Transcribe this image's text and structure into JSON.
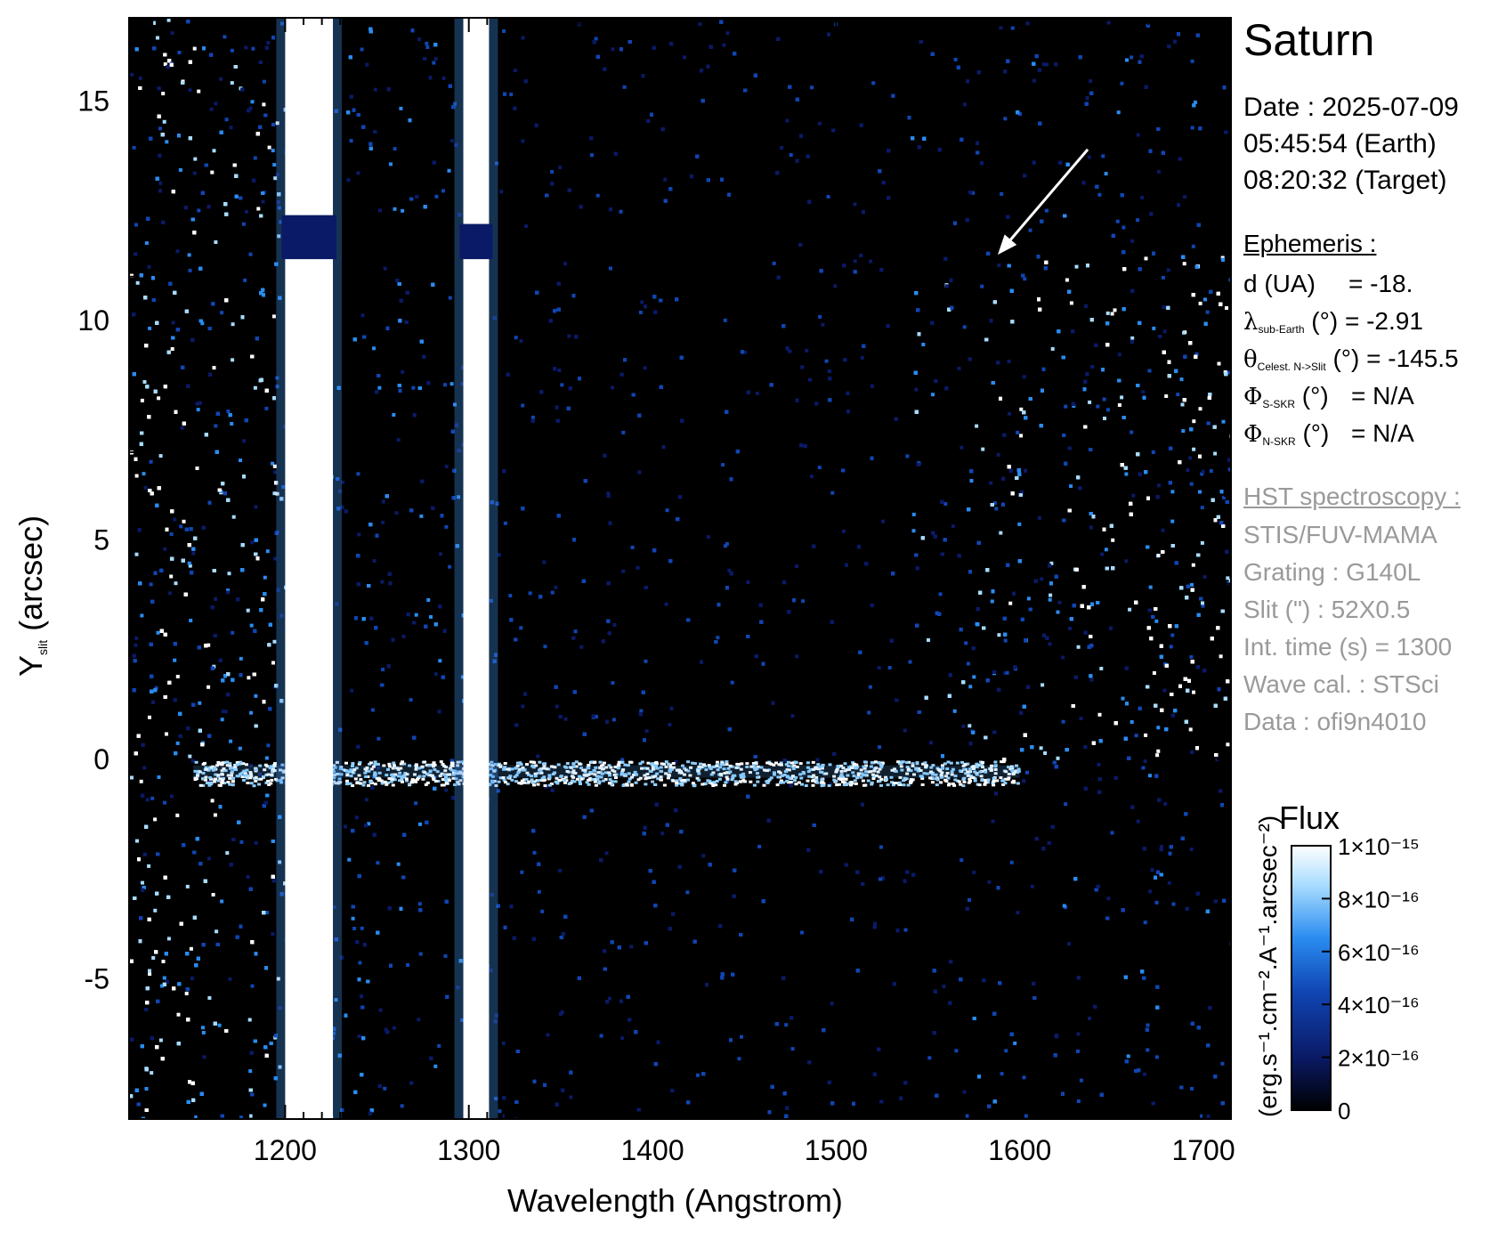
{
  "chart_data": {
    "type": "heatmap",
    "title": "Saturn",
    "xlabel": "Wavelength (Angstrom)",
    "ylabel_main": "Y",
    "ylabel_sub": "slit",
    "ylabel_units": "(arcsec)",
    "xlim": [
      1115,
      1715
    ],
    "ylim": [
      -8.2,
      16.9
    ],
    "x_ticks": [
      1200,
      1300,
      1400,
      1500,
      1600,
      1700
    ],
    "x_tick_labels": [
      "1200",
      "1300",
      "1400",
      "1500",
      "1600",
      "1700"
    ],
    "y_ticks": [
      -5,
      0,
      5,
      10,
      15
    ],
    "y_tick_labels": [
      "-5",
      "0",
      "5",
      "10",
      "15"
    ],
    "bright_columns": [
      {
        "x_min": 1200,
        "x_max": 1226,
        "gap_y": [
          11.4,
          12.4
        ]
      },
      {
        "x_min": 1297,
        "x_max": 1311,
        "gap_y": [
          11.4,
          12.2
        ]
      }
    ],
    "horizontal_feature_y": -0.3,
    "arrow": {
      "from": [
        1637,
        13.9
      ],
      "to": [
        1588,
        11.5
      ]
    },
    "colorbar": {
      "title": "Flux",
      "units": "(erg.s⁻¹.cm⁻².A⁻¹.arcsec⁻²)",
      "range": [
        0,
        1e-15
      ],
      "ticks": [
        0,
        2e-16,
        4e-16,
        6e-16,
        8e-16,
        1e-15
      ],
      "tick_labels": [
        "0",
        "2×10⁻¹⁶",
        "4×10⁻¹⁶",
        "6×10⁻¹⁶",
        "8×10⁻¹⁶",
        "1×10⁻¹⁵"
      ],
      "colors": [
        "#000000",
        "#0a1a66",
        "#1046b4",
        "#2a8cf0",
        "#a8dcff",
        "#ffffff"
      ]
    }
  },
  "info": {
    "date_line": "Date : 2025-07-09",
    "earth_time": "05:45:54 (Earth)",
    "target_time": "08:20:32 (Target)",
    "ephemeris_header": "Ephemeris :",
    "d_label": "d (UA)",
    "d_value": "= -18.",
    "lambda_symbol": "λ",
    "lambda_sub": "sub-Earth",
    "lambda_unit": "(°)",
    "lambda_value": "= -2.91",
    "theta_symbol": "θ",
    "theta_sub": "Celest. N->Slit",
    "theta_unit": "(°)",
    "theta_value": "= -145.5",
    "phi_s_symbol": "Φ",
    "phi_s_sub": "S-SKR",
    "phi_s_unit": "(°)",
    "phi_s_value": "= N/A",
    "phi_n_symbol": "Φ",
    "phi_n_sub": "N-SKR",
    "phi_n_unit": "(°)",
    "phi_n_value": "= N/A",
    "hst_header": "HST spectroscopy :",
    "instrument": "STIS/FUV-MAMA",
    "grating": "Grating : G140L",
    "slit": "Slit (\") : 52X0.5",
    "int_time": "Int. time (s) = 1300",
    "wave_cal": "Wave cal. : STSci",
    "data_id": "Data : ofi9n4010"
  }
}
